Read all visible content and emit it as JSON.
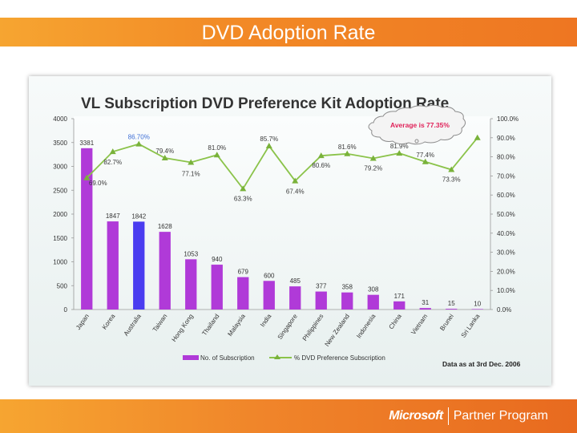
{
  "slide": {
    "title": "DVD Adoption Rate",
    "footer_brand": "Microsoft",
    "footer_program": "Partner Program"
  },
  "colors": {
    "bar": "#b03ad8",
    "bar_highlight": "#4a3cf0",
    "line": "#8bc34a",
    "line_marker": "#79b23a",
    "highlight_label": "#3f6fd6",
    "callout_text": "#e0235a"
  },
  "chart_data": {
    "type": "bar",
    "title": "VL Subscription DVD Preference Kit Adoption Rate",
    "categories": [
      "Japan",
      "Korea",
      "Australia",
      "Taiwan",
      "Hong Kong",
      "Thailand",
      "Malaysia",
      "India",
      "Singapore",
      "Philippines",
      "New Zealand",
      "Indonesia",
      "China",
      "Vietnam",
      "Brunei",
      "Sri Lanka"
    ],
    "series": [
      {
        "name": "No. of Subscription",
        "type": "bar",
        "axis": "left",
        "values": [
          3381,
          1847,
          1842,
          1628,
          1053,
          940,
          679,
          600,
          485,
          377,
          358,
          308,
          171,
          31,
          15,
          10
        ],
        "highlight_index": 2
      },
      {
        "name": "% DVD Preference Subscription",
        "type": "line",
        "axis": "right",
        "values": [
          69.0,
          82.7,
          86.7,
          79.4,
          77.1,
          81.0,
          63.3,
          85.7,
          67.4,
          80.6,
          81.6,
          79.2,
          81.9,
          77.4,
          73.3,
          90.0
        ],
        "labels": [
          "69.0%",
          "82.7%",
          "86.70%",
          "79.4%",
          "77.1%",
          "81.0%",
          "63.3%",
          "85.7%",
          "67.4%",
          "80.6%",
          "81.6%",
          "79.2%",
          "81.9%",
          "77.4%",
          "73.3%",
          ""
        ]
      }
    ],
    "left_axis": {
      "ylim": [
        0,
        4000
      ],
      "ticks": [
        "0",
        "500",
        "1000",
        "1500",
        "2000",
        "2500",
        "3000",
        "3500",
        "4000"
      ]
    },
    "right_axis": {
      "ylim": [
        0,
        100
      ],
      "ticks": [
        "0.0%",
        "10.0%",
        "20.0%",
        "30.0%",
        "40.0%",
        "50.0%",
        "60.0%",
        "70.0%",
        "80.0%",
        "90.0%",
        "100.0%"
      ]
    },
    "legend": {
      "placement": "bottom",
      "bar_label": "No. of Subscription",
      "line_label": "% DVD Preference Subscription"
    },
    "annotation": "Average is 77.35%",
    "note": "Data as at 3rd Dec. 2006"
  }
}
